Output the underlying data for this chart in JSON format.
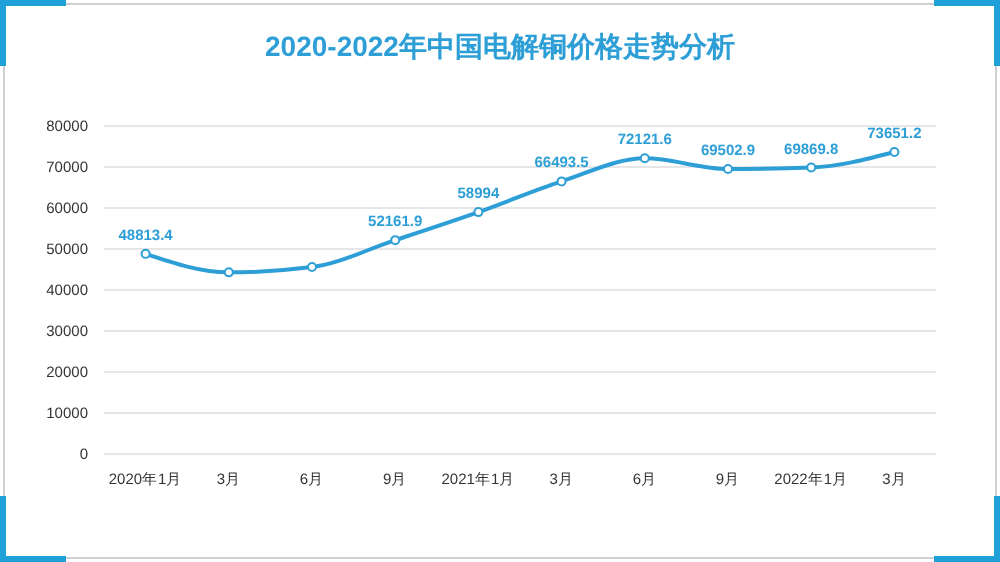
{
  "chart_data": {
    "type": "line",
    "title": "2020-2022年中国电解铜价格走势分析",
    "categories": [
      "2020年1月",
      "3月",
      "6月",
      "9月",
      "2021年1月",
      "3月",
      "6月",
      "9月",
      "2022年1月",
      "3月"
    ],
    "series": [
      {
        "color": "#2e9fd6",
        "values": [
          48813.4,
          44300,
          45600,
          52161.9,
          58994,
          66493.5,
          72121.6,
          69502.9,
          69869.8,
          73651.2
        ],
        "value_labels": [
          "48813.4",
          null,
          null,
          "52161.9",
          "58994",
          "66493.5",
          "72121.6",
          "69502.9",
          "69869.8",
          "73651.2"
        ]
      }
    ],
    "ylim": [
      0,
      80000
    ],
    "yticks": [
      0,
      10000,
      20000,
      30000,
      40000,
      50000,
      60000,
      70000,
      80000
    ],
    "grid": "y",
    "marker": "circle",
    "line_style": "solid"
  }
}
